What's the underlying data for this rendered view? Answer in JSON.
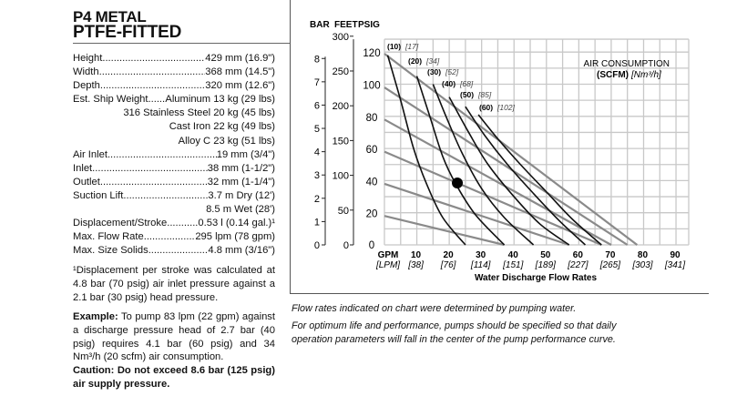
{
  "header": {
    "line1": "P4 METAL",
    "line2": "PTFE-FITTED"
  },
  "specs": [
    {
      "label": "Height",
      "value": "429 mm (16.9\")"
    },
    {
      "label": "Width",
      "value": "368 mm (14.5\")"
    },
    {
      "label": "Depth",
      "value": "320 mm (12.6\")"
    },
    {
      "label": "Est. Ship Weight",
      "value": "Aluminum 13 kg (29 lbs)"
    },
    {
      "label": "",
      "value": "316 Stainless Steel 20 kg (45 lbs)"
    },
    {
      "label": "",
      "value": "Cast Iron 22 kg (49 lbs)"
    },
    {
      "label": "",
      "value": "Alloy C 23 kg (51 lbs)"
    },
    {
      "label": "Air Inlet",
      "value": "19 mm (3/4\")"
    },
    {
      "label": "Inlet",
      "value": "38 mm (1-1/2\")"
    },
    {
      "label": "Outlet",
      "value": "32 mm (1-1/4\")"
    },
    {
      "label": "Suction Lift",
      "value": "3.7 m Dry (12')"
    },
    {
      "label": "",
      "value": "8.5 m Wet (28')"
    },
    {
      "label": "Displacement/Stroke",
      "value": "0.53 l (0.14 gal.)¹"
    },
    {
      "label": "Max. Flow Rate",
      "value": "295 lpm (78 gpm)"
    },
    {
      "label": "Max. Size Solids",
      "value": "4.8 mm (3/16\")"
    }
  ],
  "footnote": "¹Displacement per stroke was calculated at 4.8 bar (70 psig) air inlet pressure against a 2.1 bar (30 psig) head pressure.",
  "example": {
    "label": "Example:",
    "text": " To pump 83 lpm (22 gpm) against a discharge pressure head of 2.7 bar (40 psig) requires 4.1 bar (60 psig) and 34 Nm³/h (20 scfm) air consumption."
  },
  "caution": {
    "label": "Caution:",
    "text": " Do not exceed 8.6 bar (125 psig) air supply pressure."
  },
  "notes": [
    "Flow rates indicated on chart were determined by pumping water.",
    "For optimum life and performance, pumps should be specified so that daily operation parameters will fall in the center of the pump performance curve."
  ],
  "chart_data": {
    "type": "line",
    "axis_headers": [
      "BAR",
      "FEET",
      "PSIG"
    ],
    "bar_ticks": [
      0,
      1,
      2,
      3,
      4,
      5,
      6,
      7,
      8
    ],
    "feet_ticks": [
      0,
      50,
      100,
      150,
      200,
      250,
      300
    ],
    "psig_ticks": [
      20,
      40,
      60,
      80,
      100,
      120
    ],
    "psig_zero": "0",
    "x_unit_labels": [
      "GPM",
      "[LPM]"
    ],
    "x_ticks_gpm": [
      "10",
      "20",
      "30",
      "40",
      "50",
      "60",
      "70",
      "80",
      "90"
    ],
    "x_ticks_lpm": [
      "[38]",
      "[76]",
      "[114]",
      "[151]",
      "[189]",
      "[227]",
      "[265]",
      "[303]",
      "[341]"
    ],
    "xlabel": "Water Discharge Flow Rates",
    "xlim": [
      0,
      94
    ],
    "ylim_psig": [
      0,
      128
    ],
    "grid": true,
    "legend_title": [
      "AIR CONSUMPTION",
      "(SCFM)",
      "[Nm³/h]"
    ],
    "air_curves": [
      {
        "name": "(10)",
        "alt": "[17]",
        "points": [
          [
            1,
            118
          ],
          [
            5,
            90
          ],
          [
            9,
            60
          ],
          [
            13,
            38
          ],
          [
            18,
            17
          ],
          [
            25,
            0
          ]
        ]
      },
      {
        "name": "(20)",
        "alt": "[34]",
        "points": [
          [
            10,
            105
          ],
          [
            14,
            80
          ],
          [
            18,
            55
          ],
          [
            22,
            38
          ],
          [
            28,
            19
          ],
          [
            37,
            0
          ]
        ]
      },
      {
        "name": "(30)",
        "alt": "[52]",
        "points": [
          [
            15,
            100
          ],
          [
            19,
            80
          ],
          [
            24,
            57
          ],
          [
            30,
            35
          ],
          [
            37,
            17
          ],
          [
            46,
            0
          ]
        ]
      },
      {
        "name": "(40)",
        "alt": "[68]",
        "points": [
          [
            20,
            92
          ],
          [
            26,
            70
          ],
          [
            32,
            50
          ],
          [
            40,
            30
          ],
          [
            48,
            13
          ],
          [
            57,
            0
          ]
        ]
      },
      {
        "name": "(50)",
        "alt": "[85]",
        "points": [
          [
            25,
            86
          ],
          [
            31,
            68
          ],
          [
            38,
            50
          ],
          [
            46,
            32
          ],
          [
            54,
            15
          ],
          [
            62,
            0
          ]
        ]
      },
      {
        "name": "(60)",
        "alt": "[102]",
        "points": [
          [
            29,
            81
          ],
          [
            35,
            66
          ],
          [
            42,
            50
          ],
          [
            50,
            33
          ],
          [
            58,
            16
          ],
          [
            67,
            0
          ]
        ]
      }
    ],
    "pressure_lines": [
      [
        [
          0,
          119
        ],
        [
          78,
          0
        ]
      ],
      [
        [
          0,
          98
        ],
        [
          75,
          0
        ]
      ],
      [
        [
          0,
          78
        ],
        [
          70,
          0
        ]
      ],
      [
        [
          0,
          58
        ],
        [
          67,
          0
        ]
      ],
      [
        [
          0,
          38
        ],
        [
          57,
          0
        ]
      ],
      [
        [
          0,
          18
        ],
        [
          37,
          0
        ]
      ]
    ],
    "example_point": [
      22.5,
      38.5
    ],
    "colors": {
      "grid": "#c8c8c8",
      "pressure": "#8a8a8a",
      "curve": "#111111"
    }
  }
}
